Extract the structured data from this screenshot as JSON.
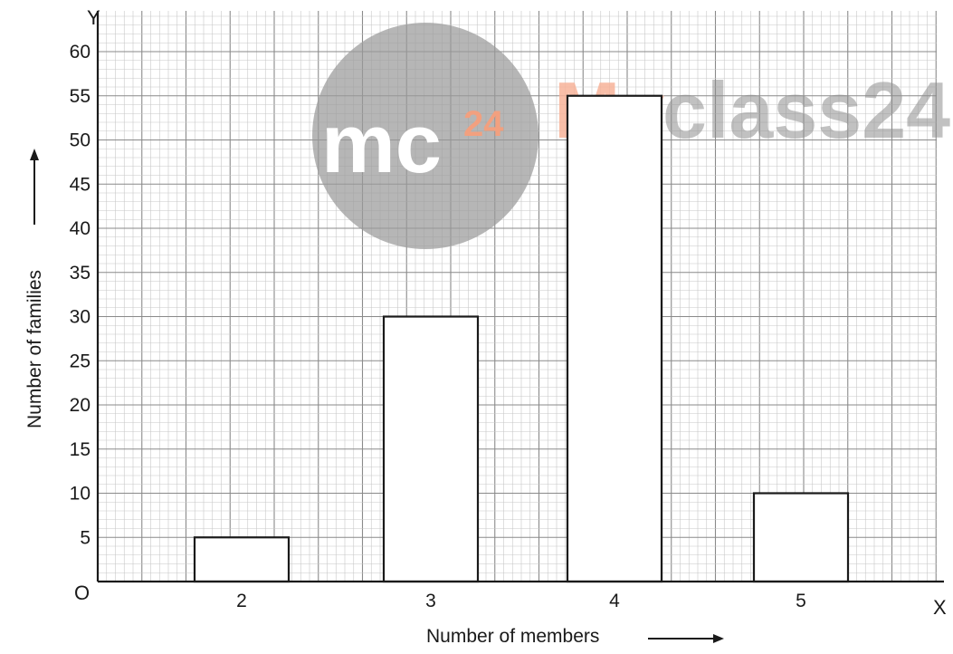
{
  "chart_data": {
    "type": "bar",
    "categories": [
      "2",
      "3",
      "4",
      "5"
    ],
    "values": [
      5,
      30,
      55,
      10
    ],
    "title": "",
    "xlabel": "Number of members",
    "ylabel": "Number of families",
    "x_axis_letter": "X",
    "y_axis_letter": "Y",
    "origin_label": "O",
    "ylim": [
      0,
      65
    ],
    "yticks": [
      5,
      10,
      15,
      20,
      25,
      30,
      35,
      40,
      45,
      50,
      55,
      60
    ],
    "grid": true,
    "legend": "none"
  },
  "watermark": {
    "logo_text": "mc",
    "logo_superscript": "24",
    "brand_part1": "My",
    "brand_part2": "class24"
  },
  "colors": {
    "grid_minor": "#c8c8c8",
    "grid_major": "#8a8a8a",
    "bar_fill": "#ffffff",
    "bar_stroke": "#1a1a1a",
    "logo_circle": "#9a9a9a",
    "logo_accent": "#f2a07f"
  }
}
